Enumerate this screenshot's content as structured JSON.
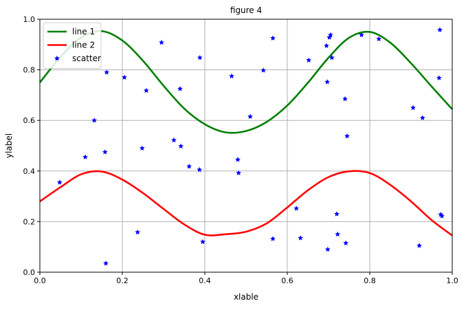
{
  "chart_data": {
    "type": "line",
    "title": "figure 4",
    "xlabel": "xlable",
    "ylabel": "ylabel",
    "xlim": [
      0.0,
      1.0
    ],
    "ylim": [
      0.0,
      1.0
    ],
    "xticks": [
      "0.0",
      "0.2",
      "0.4",
      "0.6",
      "0.8",
      "1.0"
    ],
    "yticks": [
      "0.0",
      "0.2",
      "0.4",
      "0.6",
      "0.8",
      "1.0"
    ],
    "grid": true,
    "legend_position": "top-left",
    "series": [
      {
        "name": "line 1",
        "kind": "line",
        "color": "#008000",
        "x": [
          0.0,
          0.05,
          0.1,
          0.15,
          0.2,
          0.25,
          0.3,
          0.35,
          0.4,
          0.45,
          0.5,
          0.55,
          0.6,
          0.65,
          0.7,
          0.75,
          0.8,
          0.85,
          0.9,
          0.95,
          1.0
        ],
        "y": [
          0.75,
          0.851,
          0.928,
          0.953,
          0.916,
          0.836,
          0.737,
          0.647,
          0.585,
          0.553,
          0.558,
          0.594,
          0.659,
          0.749,
          0.848,
          0.927,
          0.95,
          0.907,
          0.826,
          0.734,
          0.644
        ]
      },
      {
        "name": "line 2",
        "kind": "line",
        "color": "#ff0000",
        "x": [
          0.0,
          0.05,
          0.1,
          0.15,
          0.2,
          0.25,
          0.3,
          0.35,
          0.4,
          0.45,
          0.5,
          0.55,
          0.6,
          0.65,
          0.7,
          0.75,
          0.8,
          0.85,
          0.9,
          0.95,
          1.0
        ],
        "y": [
          0.28,
          0.336,
          0.387,
          0.398,
          0.366,
          0.313,
          0.25,
          0.189,
          0.148,
          0.15,
          0.16,
          0.193,
          0.256,
          0.324,
          0.376,
          0.399,
          0.392,
          0.345,
          0.28,
          0.206,
          0.145
        ]
      },
      {
        "name": "scatter",
        "kind": "scatter",
        "color": "#0000ff",
        "marker": "star",
        "x": [
          0.04,
          0.048,
          0.11,
          0.132,
          0.158,
          0.16,
          0.162,
          0.205,
          0.237,
          0.248,
          0.258,
          0.295,
          0.325,
          0.34,
          0.342,
          0.362,
          0.387,
          0.388,
          0.395,
          0.465,
          0.48,
          0.482,
          0.51,
          0.542,
          0.565,
          0.565,
          0.622,
          0.632,
          0.652,
          0.695,
          0.697,
          0.698,
          0.702,
          0.705,
          0.708,
          0.72,
          0.722,
          0.74,
          0.742,
          0.745,
          0.78,
          0.822,
          0.905,
          0.92,
          0.928,
          0.968,
          0.97,
          0.972,
          0.975
        ],
        "y": [
          0.845,
          0.355,
          0.455,
          0.6,
          0.475,
          0.035,
          0.79,
          0.77,
          0.158,
          0.49,
          0.718,
          0.908,
          0.522,
          0.725,
          0.498,
          0.418,
          0.405,
          0.848,
          0.12,
          0.775,
          0.445,
          0.392,
          0.615,
          0.798,
          0.925,
          0.132,
          0.252,
          0.135,
          0.838,
          0.895,
          0.752,
          0.09,
          0.928,
          0.938,
          0.848,
          0.23,
          0.15,
          0.685,
          0.115,
          0.538,
          0.938,
          0.922,
          0.65,
          0.105,
          0.61,
          0.768,
          0.958,
          0.228,
          0.222
        ]
      }
    ]
  }
}
